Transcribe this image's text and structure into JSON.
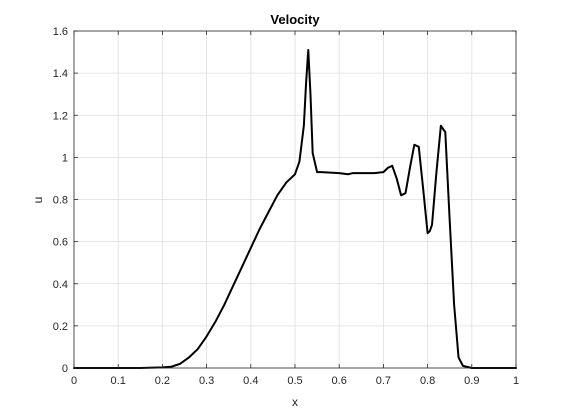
{
  "chart_data": {
    "type": "line",
    "title": "Velocity",
    "xlabel": "x",
    "ylabel": "u",
    "xlim": [
      0,
      1
    ],
    "ylim": [
      0,
      1.6
    ],
    "xticks": [
      "0",
      "0.1",
      "0.2",
      "0.3",
      "0.4",
      "0.5",
      "0.6",
      "0.7",
      "0.8",
      "0.9",
      "1"
    ],
    "yticks": [
      "0",
      "0.2",
      "0.4",
      "0.6",
      "0.8",
      "1",
      "1.2",
      "1.4",
      "1.6"
    ],
    "grid": true,
    "line_color": "#000000",
    "series": [
      {
        "x": [
          0,
          0.05,
          0.1,
          0.15,
          0.2,
          0.22,
          0.24,
          0.26,
          0.28,
          0.3,
          0.32,
          0.34,
          0.36,
          0.38,
          0.4,
          0.42,
          0.44,
          0.46,
          0.48,
          0.49,
          0.5,
          0.51,
          0.52,
          0.525,
          0.53,
          0.535,
          0.54,
          0.55,
          0.56,
          0.6,
          0.62,
          0.63,
          0.65,
          0.68,
          0.7,
          0.71,
          0.72,
          0.73,
          0.74,
          0.75,
          0.76,
          0.77,
          0.78,
          0.79,
          0.8,
          0.805,
          0.81,
          0.82,
          0.83,
          0.84,
          0.85,
          0.86,
          0.87,
          0.88,
          0.9,
          1
        ],
        "y": [
          0,
          0,
          0,
          0,
          0.003,
          0.006,
          0.02,
          0.05,
          0.09,
          0.15,
          0.22,
          0.3,
          0.39,
          0.48,
          0.57,
          0.66,
          0.74,
          0.82,
          0.88,
          0.9,
          0.92,
          0.98,
          1.15,
          1.35,
          1.51,
          1.3,
          1.02,
          0.93,
          0.93,
          0.925,
          0.92,
          0.925,
          0.925,
          0.925,
          0.93,
          0.95,
          0.96,
          0.9,
          0.82,
          0.83,
          0.95,
          1.06,
          1.05,
          0.85,
          0.64,
          0.65,
          0.68,
          0.93,
          1.15,
          1.12,
          0.7,
          0.3,
          0.05,
          0.01,
          0,
          0
        ]
      }
    ]
  }
}
